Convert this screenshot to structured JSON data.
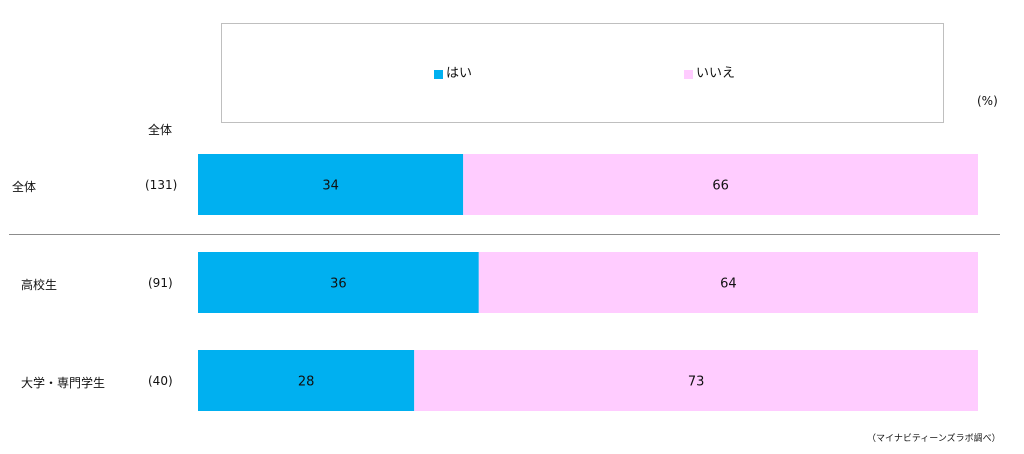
{
  "chart_data": {
    "type": "bar",
    "orientation": "horizontal",
    "stacked": true,
    "normalized": true,
    "unit_label": "(%)",
    "column_header": "全体",
    "legend": [
      "はい",
      "いいえ"
    ],
    "colors": {
      "はい": "#00b0f0",
      "いいえ": "#ffccff"
    },
    "categories": [
      "全体",
      "高校生",
      "大学・専門学生"
    ],
    "sample_sizes": [
      "(131)",
      "(91)",
      "(40)"
    ],
    "series": [
      {
        "name": "はい",
        "values": [
          34,
          36,
          28
        ]
      },
      {
        "name": "いいえ",
        "values": [
          66,
          64,
          73
        ]
      }
    ],
    "source_note": "（マイナビティーンズラボ調べ）"
  }
}
